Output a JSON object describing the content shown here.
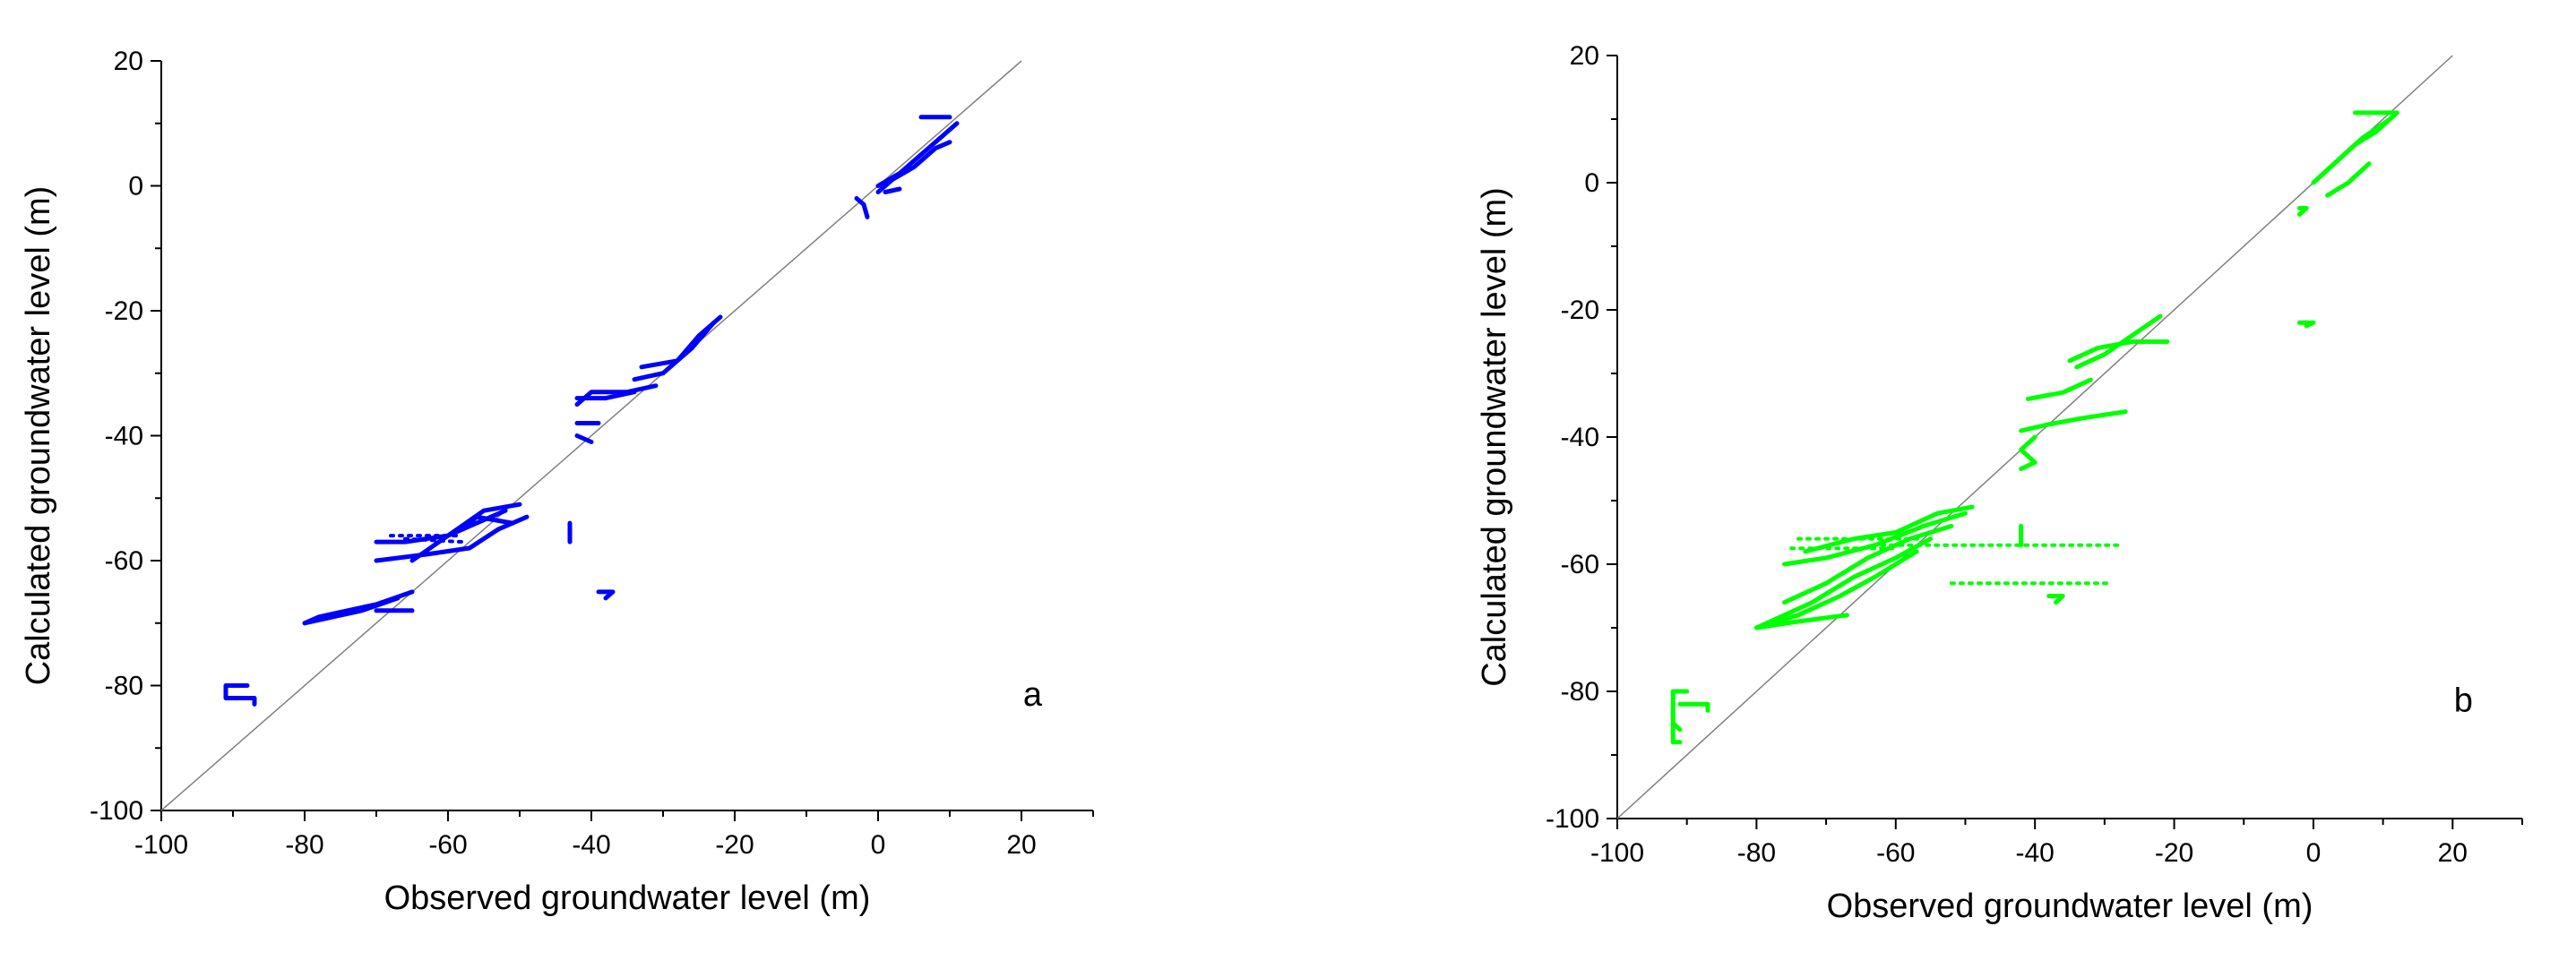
{
  "chart_data": [
    {
      "type": "scatter",
      "panel_label": "a",
      "xlabel": "Observed groundwater level (m)",
      "ylabel": "Calculated groundwater level (m)",
      "xlim": [
        -100,
        30
      ],
      "ylim": [
        -100,
        20
      ],
      "x_ticks": [
        -100,
        -80,
        -60,
        -40,
        -20,
        0,
        20
      ],
      "y_ticks": [
        -100,
        -80,
        -60,
        -40,
        -20,
        0,
        20
      ],
      "x_tick_labels": [
        "-100",
        "-80",
        "-60",
        "-40",
        "-20",
        "0",
        "20"
      ],
      "y_tick_labels": [
        "-100",
        "-80",
        "-60",
        "-40",
        "-20",
        "0",
        "20"
      ],
      "reference_line": {
        "from": [
          -100,
          -100
        ],
        "to": [
          20,
          20
        ],
        "color": "#808080"
      },
      "grid": false,
      "marker_color": "#0000ff",
      "series": [
        {
          "tracks": [
            [
              [
                0,
                0
              ],
              [
                3,
                2
              ],
              [
                6,
                5
              ],
              [
                9,
                8
              ],
              [
                11,
                10
              ]
            ],
            [
              [
                0,
                -1
              ],
              [
                2,
                1
              ],
              [
                5,
                3
              ],
              [
                8,
                6
              ],
              [
                10,
                7
              ]
            ],
            [
              [
                -3,
                -2
              ],
              [
                -2,
                -3
              ],
              [
                -1.5,
                -5
              ]
            ],
            [
              [
                1,
                -1
              ],
              [
                3,
                -0.5
              ]
            ],
            [
              [
                6,
                11
              ],
              [
                10,
                11
              ]
            ],
            [
              [
                -22,
                -21
              ],
              [
                -25,
                -24
              ],
              [
                -28,
                -28
              ],
              [
                -33,
                -29
              ]
            ],
            [
              [
                -23,
                -22
              ],
              [
                -26,
                -26
              ],
              [
                -30,
                -30
              ],
              [
                -34,
                -31
              ]
            ],
            [
              [
                -34,
                -33
              ],
              [
                -38,
                -34
              ],
              [
                -42,
                -34
              ]
            ],
            [
              [
                -31,
                -32
              ],
              [
                -35,
                -33
              ],
              [
                -40,
                -33
              ],
              [
                -42,
                -35
              ]
            ],
            [
              [
                -42,
                -38
              ],
              [
                -39,
                -38
              ]
            ],
            [
              [
                -42,
                -40
              ],
              [
                -40,
                -41
              ]
            ],
            [
              [
                -50,
                -51
              ],
              [
                -55,
                -52
              ],
              [
                -60,
                -56
              ],
              [
                -66,
                -57
              ],
              [
                -70,
                -57
              ]
            ],
            [
              [
                -49,
                -53
              ],
              [
                -53,
                -55
              ],
              [
                -57,
                -58
              ],
              [
                -63,
                -59
              ],
              [
                -70,
                -60
              ]
            ],
            [
              [
                -52,
                -52
              ],
              [
                -56,
                -54
              ],
              [
                -60,
                -56
              ],
              [
                -65,
                -60
              ]
            ],
            [
              [
                -51,
                -54
              ],
              [
                -56,
                -53
              ],
              [
                -58,
                -55
              ]
            ],
            [
              [
                -65,
                -65
              ],
              [
                -70,
                -67
              ],
              [
                -78,
                -69
              ],
              [
                -80,
                -70
              ]
            ],
            [
              [
                -67,
                -66
              ],
              [
                -72,
                -68
              ],
              [
                -80,
                -70
              ]
            ],
            [
              [
                -70,
                -68
              ],
              [
                -65,
                -68
              ]
            ],
            [
              [
                -43,
                -54
              ],
              [
                -43,
                -57
              ]
            ],
            [
              [
                -39,
                -65
              ],
              [
                -37,
                -65
              ],
              [
                -38,
                -66
              ]
            ],
            [
              [
                -88,
                -80
              ],
              [
                -91,
                -80
              ],
              [
                -91,
                -82
              ],
              [
                -87,
                -82
              ],
              [
                -87,
                -83
              ]
            ]
          ],
          "dotted": [
            [
              [
                -68,
                -56
              ],
              [
                -58,
                -56
              ]
            ],
            [
              [
                -66,
                -56.5
              ],
              [
                -58,
                -57
              ]
            ]
          ]
        }
      ]
    },
    {
      "type": "scatter",
      "panel_label": "b",
      "xlabel": "Observed groundwater level (m)",
      "ylabel": "Calculated groundwater level (m)",
      "xlim": [
        -100,
        30
      ],
      "ylim": [
        -100,
        20
      ],
      "x_ticks": [
        -100,
        -80,
        -60,
        -40,
        -20,
        0,
        20
      ],
      "y_ticks": [
        -100,
        -80,
        -60,
        -40,
        -20,
        0,
        20
      ],
      "x_tick_labels": [
        "-100",
        "-80",
        "-60",
        "-40",
        "-20",
        "0",
        "20"
      ],
      "y_tick_labels": [
        "-100",
        "-80",
        "-60",
        "-40",
        "-20",
        "0",
        "20"
      ],
      "reference_line": {
        "from": [
          -100,
          -100
        ],
        "to": [
          20,
          20
        ],
        "color": "#808080"
      },
      "grid": false,
      "marker_color": "#00ff00",
      "series": [
        {
          "tracks": [
            [
              [
                0,
                0
              ],
              [
                3,
                3
              ],
              [
                6,
                6
              ],
              [
                9,
                8
              ],
              [
                12,
                11
              ]
            ],
            [
              [
                1,
                1
              ],
              [
                4,
                4
              ],
              [
                7,
                7
              ],
              [
                11,
                10
              ]
            ],
            [
              [
                2,
                -2
              ],
              [
                5,
                0
              ],
              [
                8,
                3
              ]
            ],
            [
              [
                -2,
                -4
              ],
              [
                -1,
                -4
              ],
              [
                -2,
                -5
              ]
            ],
            [
              [
                6,
                11
              ],
              [
                12,
                11
              ]
            ],
            [
              [
                -2,
                -22
              ],
              [
                0,
                -22
              ],
              [
                -1,
                -22.5
              ]
            ],
            [
              [
                -22,
                -21
              ],
              [
                -26,
                -24
              ],
              [
                -30,
                -27
              ],
              [
                -34,
                -29
              ]
            ],
            [
              [
                -21,
                -25
              ],
              [
                -26,
                -25
              ],
              [
                -31,
                -26
              ],
              [
                -35,
                -28
              ]
            ],
            [
              [
                -32,
                -31
              ],
              [
                -36,
                -33
              ],
              [
                -41,
                -34
              ]
            ],
            [
              [
                -27,
                -36
              ],
              [
                -33,
                -37
              ],
              [
                -38,
                -38
              ],
              [
                -42,
                -39
              ]
            ],
            [
              [
                -40,
                -40
              ],
              [
                -42,
                -42
              ],
              [
                -40,
                -44
              ],
              [
                -42,
                -45
              ]
            ],
            [
              [
                -49,
                -51
              ],
              [
                -54,
                -52
              ],
              [
                -60,
                -55
              ],
              [
                -66,
                -56
              ],
              [
                -73,
                -58
              ]
            ],
            [
              [
                -50,
                -52
              ],
              [
                -56,
                -54
              ],
              [
                -63,
                -57
              ],
              [
                -70,
                -59
              ],
              [
                -76,
                -60
              ]
            ],
            [
              [
                -52,
                -54
              ],
              [
                -58,
                -56
              ],
              [
                -64,
                -59
              ],
              [
                -70,
                -63
              ],
              [
                -76,
                -66
              ]
            ],
            [
              [
                -55,
                -56
              ],
              [
                -60,
                -59
              ],
              [
                -66,
                -62
              ],
              [
                -72,
                -66
              ],
              [
                -80,
                -70
              ]
            ],
            [
              [
                -57,
                -58
              ],
              [
                -63,
                -62
              ],
              [
                -68,
                -65
              ],
              [
                -74,
                -68
              ],
              [
                -80,
                -70
              ]
            ],
            [
              [
                -67,
                -68
              ],
              [
                -74,
                -69
              ],
              [
                -80,
                -70
              ]
            ],
            [
              [
                -42,
                -54
              ],
              [
                -42,
                -57
              ]
            ],
            [
              [
                -38,
                -65
              ],
              [
                -36,
                -65
              ],
              [
                -37,
                -66
              ]
            ],
            [
              [
                -90,
                -80
              ],
              [
                -92,
                -80
              ],
              [
                -92,
                -88
              ],
              [
                -91,
                -88
              ]
            ],
            [
              [
                -91,
                -82
              ],
              [
                -87,
                -82
              ],
              [
                -87,
                -83
              ]
            ],
            [
              [
                -92,
                -85
              ],
              [
                -91,
                -86
              ]
            ]
          ],
          "dotted": [
            [
              [
                -62,
                -57
              ],
              [
                -28,
                -57
              ]
            ],
            [
              [
                -52,
                -63
              ],
              [
                -29,
                -63
              ]
            ],
            [
              [
                -74,
                -56
              ],
              [
                -56,
                -56
              ]
            ],
            [
              [
                -75,
                -57.5
              ],
              [
                -60,
                -57.5
              ]
            ]
          ]
        }
      ]
    }
  ]
}
